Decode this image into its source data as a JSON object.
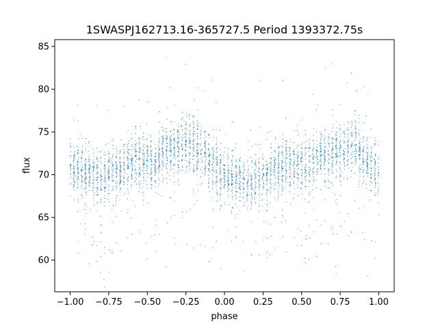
{
  "chart_data": {
    "type": "scatter",
    "title": "1SWASPJ162713.16-365727.5 Period 1393372.75s",
    "xlabel": "phase",
    "ylabel": "flux",
    "xlim": [
      -1.1,
      1.1
    ],
    "ylim": [
      56.3,
      85.8
    ],
    "x_ticks": [
      -1.0,
      -0.75,
      -0.5,
      -0.25,
      0.0,
      0.25,
      0.5,
      0.75,
      1.0
    ],
    "x_tick_labels": [
      "−1.00",
      "−0.75",
      "−0.50",
      "−0.25",
      "0.00",
      "0.25",
      "0.50",
      "0.75",
      "1.00"
    ],
    "y_ticks": [
      60,
      65,
      70,
      75,
      80,
      85
    ],
    "y_tick_labels": [
      "60",
      "65",
      "70",
      "75",
      "80",
      "85"
    ],
    "grid": false,
    "point_color": "#1f77b4",
    "series": [
      {
        "profile": {
          "phase": [
            -1.0,
            -0.9,
            -0.8,
            -0.7,
            -0.6,
            -0.5,
            -0.45,
            -0.4,
            -0.3,
            -0.25,
            -0.2,
            -0.15,
            -0.1,
            0.0,
            0.1,
            0.2,
            0.25,
            0.3,
            0.4,
            0.5,
            0.55,
            0.6,
            0.7,
            0.75,
            0.8,
            0.85,
            0.9,
            1.0
          ],
          "flux": [
            71.0,
            70.0,
            69.5,
            70.5,
            71.5,
            71.5,
            71.0,
            72.5,
            73.0,
            73.5,
            73.5,
            72.5,
            71.5,
            70.0,
            69.0,
            69.0,
            70.0,
            70.5,
            71.0,
            71.0,
            71.0,
            72.0,
            72.5,
            72.5,
            73.0,
            73.5,
            72.0,
            70.0
          ]
        }
      }
    ]
  }
}
